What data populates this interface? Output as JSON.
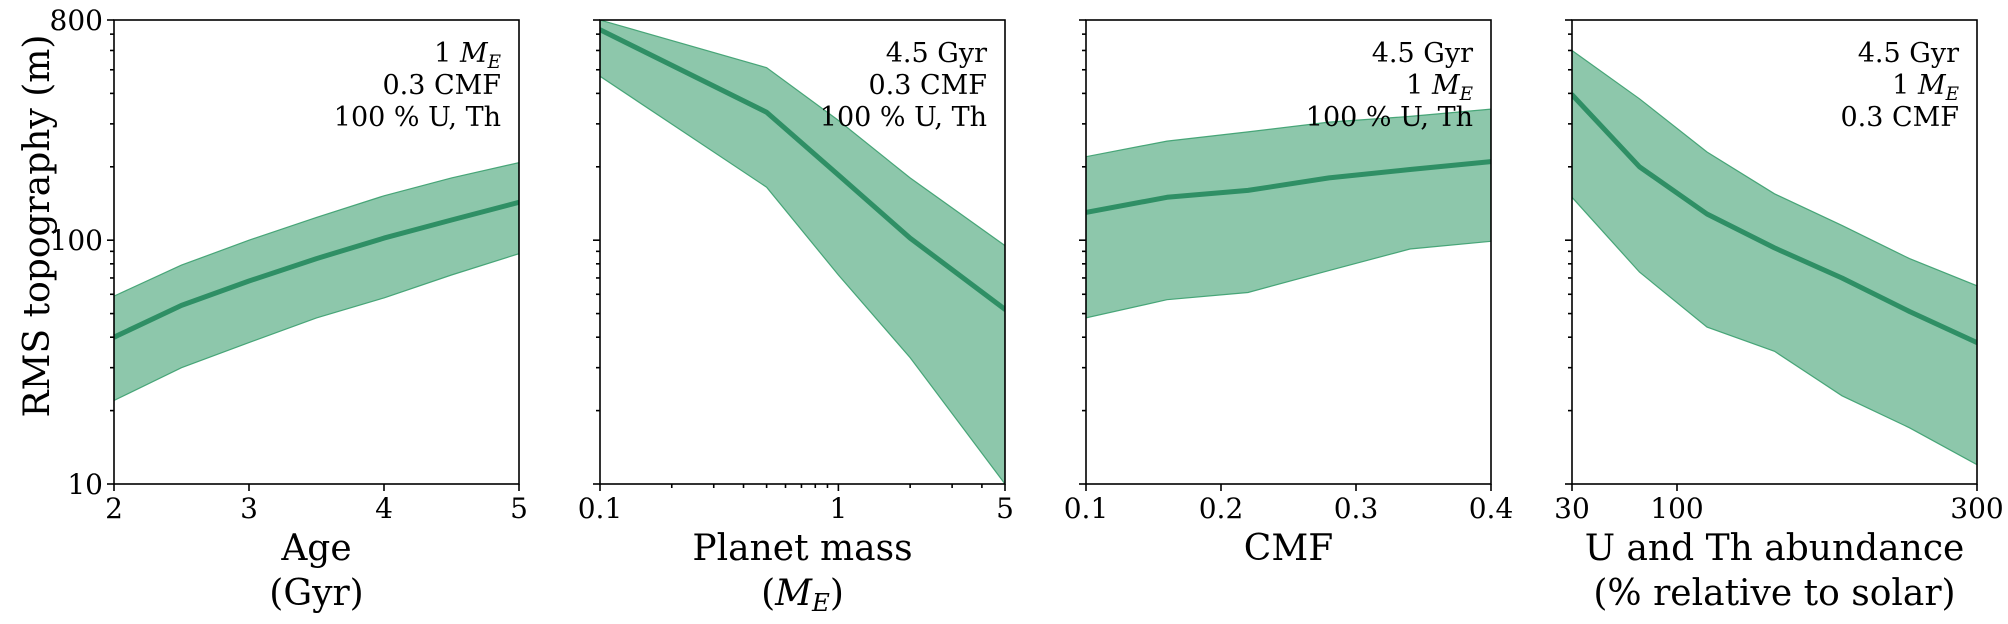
{
  "chart_data": [
    {
      "type": "area",
      "ylabel": "RMS topography (m)",
      "xlabel": [
        "Age",
        "(Gyr)"
      ],
      "x_scale": "linear",
      "xlim": [
        2,
        5
      ],
      "xticks": [
        {
          "v": 2,
          "label": "2"
        },
        {
          "v": 3,
          "label": "3"
        },
        {
          "v": 4,
          "label": "4"
        },
        {
          "v": 5,
          "label": "5"
        }
      ],
      "y_scale": "log",
      "ylim": [
        10,
        800
      ],
      "yticks": [
        {
          "v": 10,
          "label": "10"
        },
        {
          "v": 100,
          "label": "100"
        },
        {
          "v": 800,
          "label": "800"
        }
      ],
      "annotation": [
        "1 ME",
        "0.3 CMF",
        "100 % U, Th"
      ],
      "x": [
        2,
        2.5,
        3,
        3.5,
        4,
        4.5,
        5
      ],
      "series": [
        {
          "values": [
            40,
            54,
            68,
            84,
            102,
            121,
            143
          ],
          "lower": [
            22,
            30,
            38,
            48,
            58,
            72,
            88
          ],
          "upper": [
            59,
            79,
            100,
            124,
            152,
            180,
            208
          ]
        }
      ],
      "color": "#3a9e6e"
    },
    {
      "type": "area",
      "xlabel": [
        "Planet mass",
        "(ME)"
      ],
      "x_scale": "log",
      "xlim": [
        0.1,
        5
      ],
      "xticks": [
        {
          "v": 0.1,
          "label": "0.1"
        },
        {
          "v": 1,
          "label": "1"
        },
        {
          "v": 5,
          "label": "5"
        }
      ],
      "y_scale": "log",
      "ylim": [
        10,
        800
      ],
      "yticks": [
        {
          "v": 10,
          "label": ""
        },
        {
          "v": 100,
          "label": ""
        },
        {
          "v": 800,
          "label": ""
        }
      ],
      "annotation": [
        "4.5 Gyr",
        "0.3 CMF",
        "100 % U, Th"
      ],
      "x": [
        0.1,
        0.5,
        1,
        2,
        5
      ],
      "series": [
        {
          "values": [
            730,
            335,
            185,
            102,
            52
          ],
          "lower": [
            470,
            165,
            72,
            33,
            9.5
          ],
          "upper": [
            800,
            510,
            310,
            180,
            95
          ]
        }
      ],
      "color": "#3a9e6e"
    },
    {
      "type": "area",
      "xlabel": [
        "CMF"
      ],
      "x_scale": "linear",
      "xlim": [
        0.1,
        0.4
      ],
      "xticks": [
        {
          "v": 0.1,
          "label": "0.1"
        },
        {
          "v": 0.2,
          "label": "0.2"
        },
        {
          "v": 0.3,
          "label": "0.3"
        },
        {
          "v": 0.4,
          "label": "0.4"
        }
      ],
      "y_scale": "log",
      "ylim": [
        10,
        800
      ],
      "yticks": [
        {
          "v": 10,
          "label": ""
        },
        {
          "v": 100,
          "label": ""
        },
        {
          "v": 800,
          "label": ""
        }
      ],
      "annotation": [
        "4.5 Gyr",
        "1 ME",
        "100 % U, Th"
      ],
      "x": [
        0.1,
        0.16,
        0.22,
        0.28,
        0.34,
        0.4
      ],
      "series": [
        {
          "values": [
            130,
            150,
            160,
            180,
            195,
            210
          ],
          "lower": [
            48,
            57,
            61,
            75,
            92,
            99
          ],
          "upper": [
            220,
            255,
            278,
            305,
            322,
            345
          ]
        }
      ],
      "color": "#3a9e6e"
    },
    {
      "type": "area",
      "xlabel": [
        "U and Th abundance",
        "(% relative to solar)"
      ],
      "x_scale": "linear",
      "xlim": [
        30,
        300
      ],
      "xticks": [
        {
          "v": 30,
          "label": "30"
        },
        {
          "v": 100,
          "label": "100"
        },
        {
          "v": 300,
          "label": "300"
        }
      ],
      "y_scale": "log",
      "ylim": [
        10,
        800
      ],
      "yticks": [
        {
          "v": 10,
          "label": ""
        },
        {
          "v": 100,
          "label": ""
        },
        {
          "v": 800,
          "label": ""
        }
      ],
      "annotation": [
        "4.5 Gyr",
        "1 ME",
        "0.3 CMF"
      ],
      "x": [
        30,
        75,
        120,
        165,
        210,
        255,
        300
      ],
      "series": [
        {
          "values": [
            395,
            200,
            128,
            93,
            70,
            51,
            38
          ],
          "lower": [
            150,
            74,
            44,
            35,
            23,
            17,
            12
          ],
          "upper": [
            600,
            380,
            230,
            155,
            115,
            84,
            65
          ]
        }
      ],
      "color": "#3a9e6e"
    }
  ]
}
